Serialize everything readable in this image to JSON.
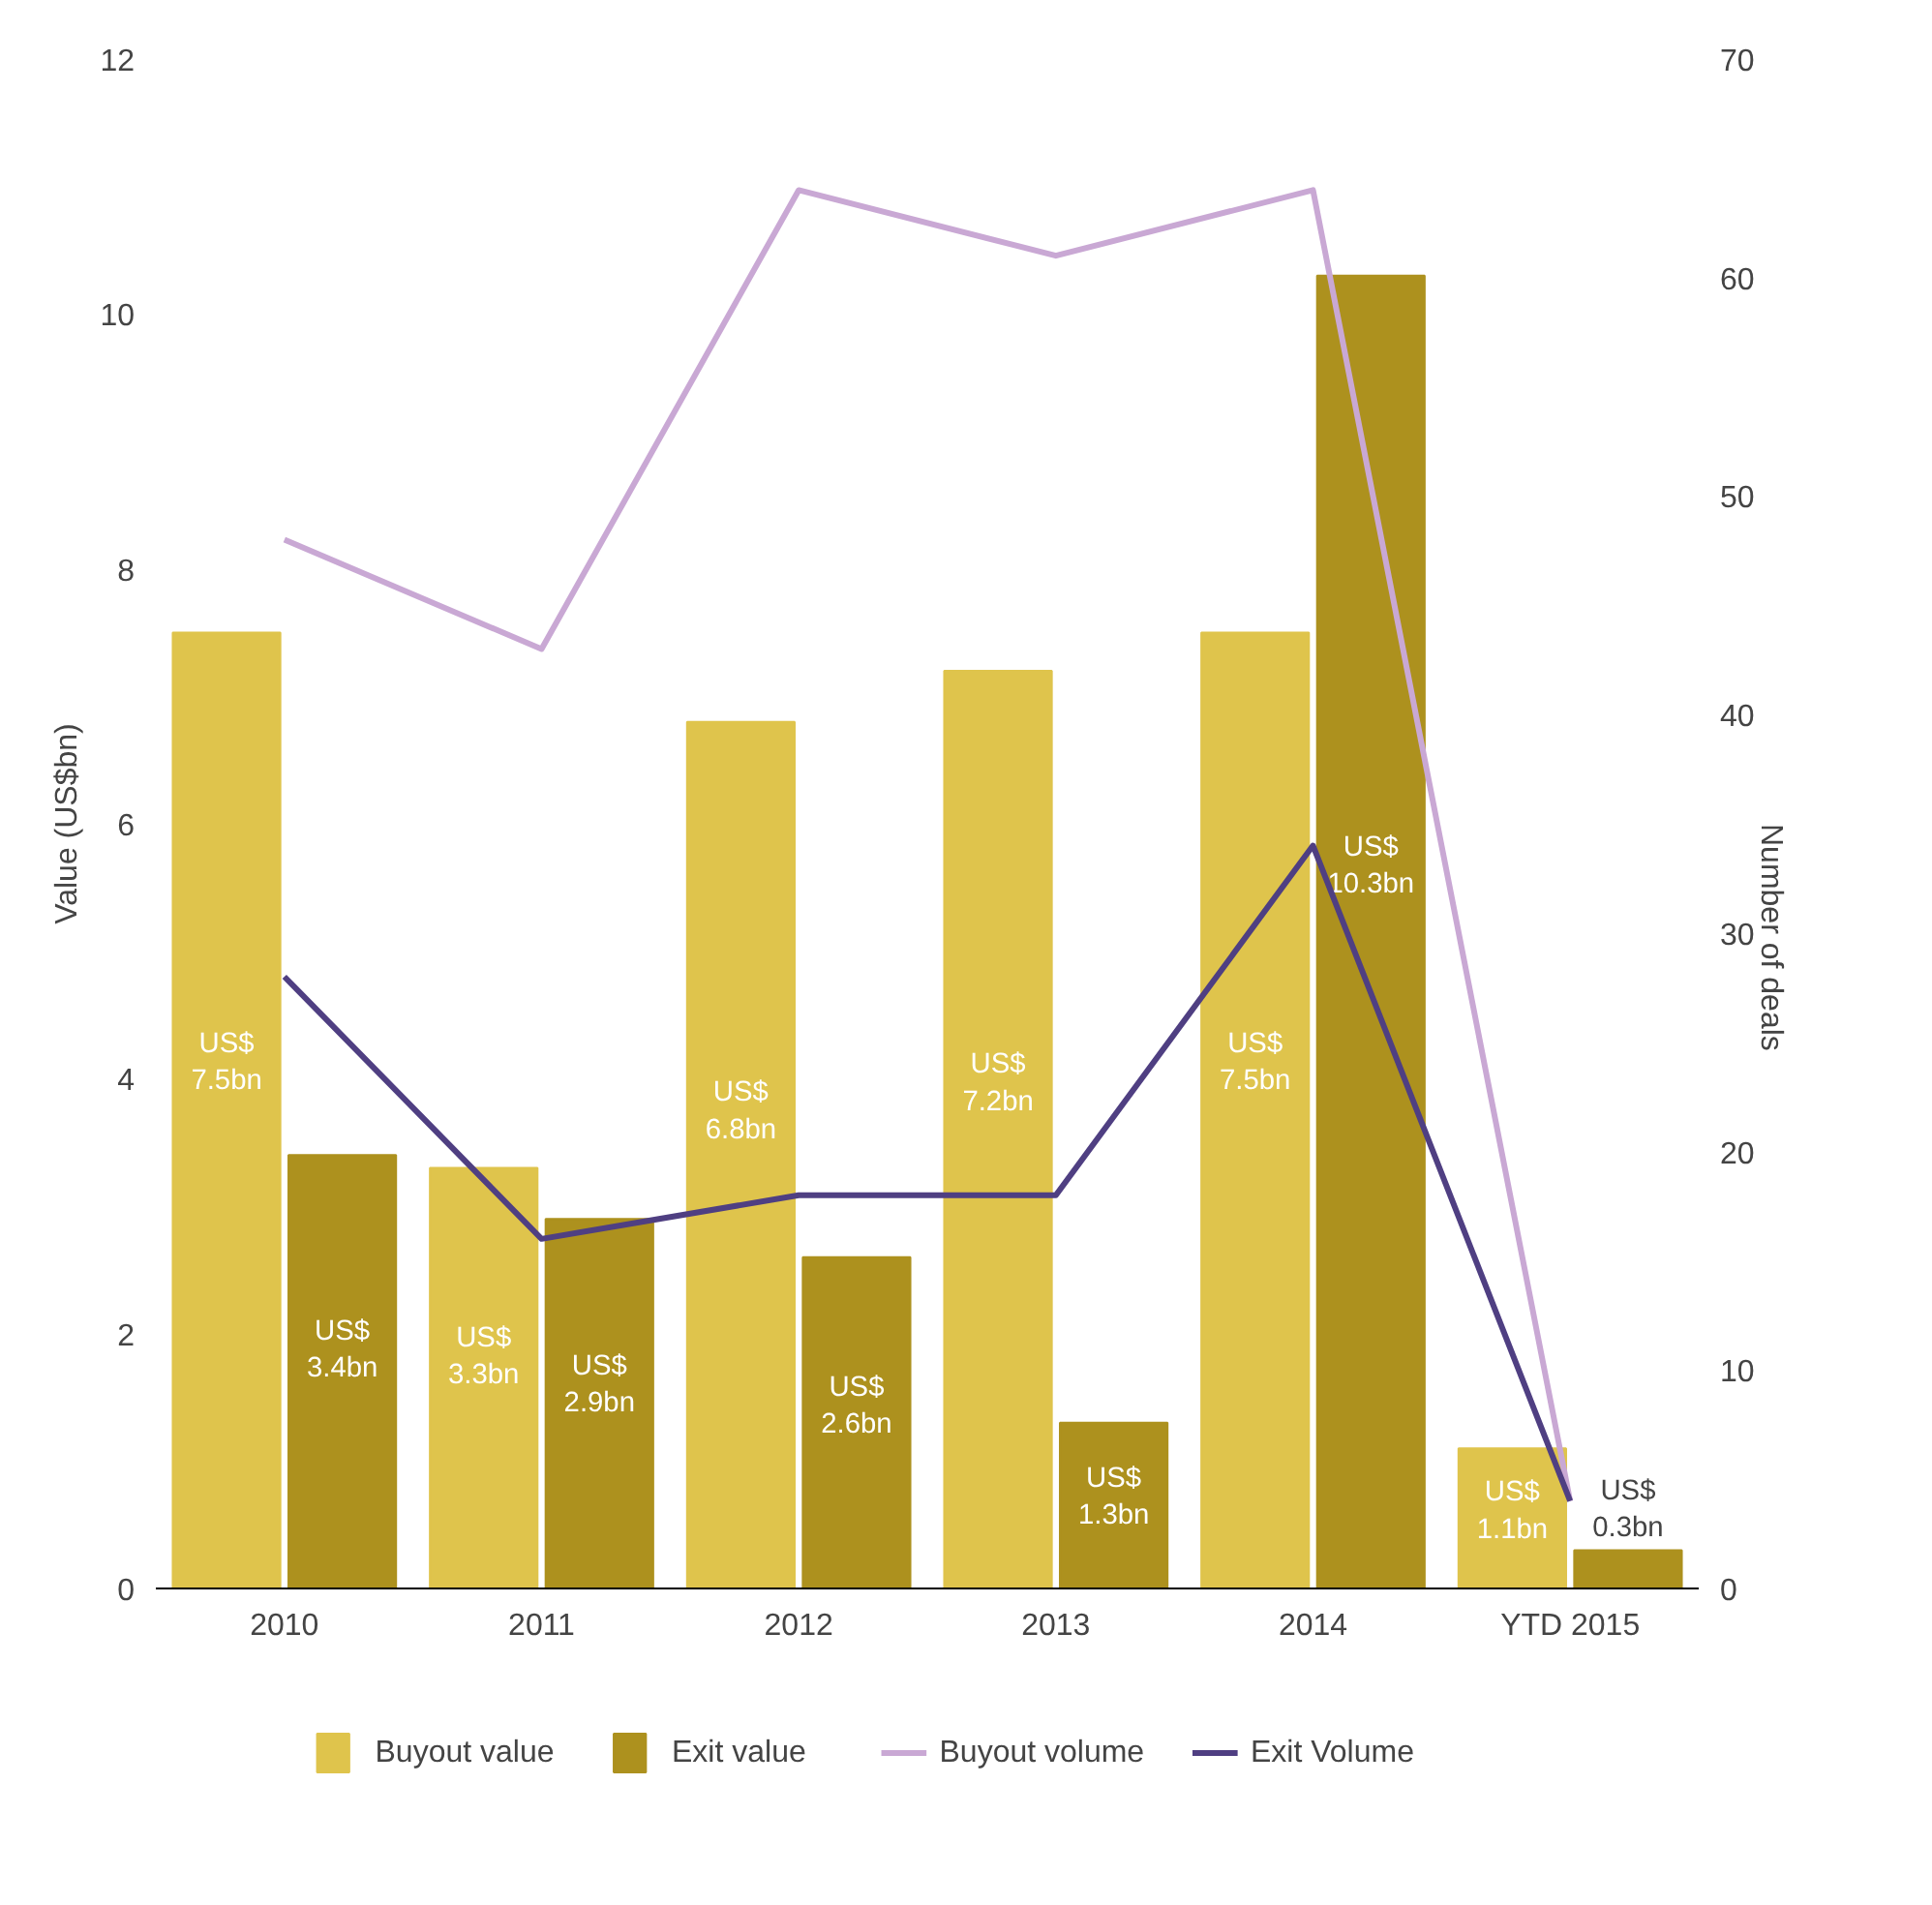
{
  "chart_data": {
    "type": "bar",
    "categories": [
      "2010",
      "2011",
      "2012",
      "2013",
      "2014",
      "YTD 2015"
    ],
    "ylabel": "Value (US$bn)",
    "y2label": "Number of deals",
    "ylim": [
      0,
      12
    ],
    "yticks": [
      0,
      2,
      4,
      6,
      8,
      10,
      12
    ],
    "y2lim": [
      0,
      70
    ],
    "y2ticks": [
      0,
      10,
      20,
      30,
      40,
      50,
      60,
      70
    ],
    "grid": false,
    "legend": "bottom",
    "series": [
      {
        "name": "Buyout value",
        "color": "#dfc44c",
        "values": [
          7.5,
          3.3,
          6.8,
          7.2,
          7.5,
          1.1
        ],
        "value_labels": [
          "US$\n7.5bn",
          "US$\n3.3bn",
          "US$\n6.8bn",
          "US$\n7.2bn",
          "US$\n7.5bn",
          "US$\n1.1bn"
        ]
      },
      {
        "name": "Exit value",
        "color": "#ad911e",
        "values": [
          3.4,
          2.9,
          2.6,
          1.3,
          10.3,
          0.3
        ],
        "value_labels": [
          "US$\n3.4bn",
          "US$\n2.9bn",
          "US$\n2.6bn",
          "US$\n1.3bn",
          "US$\n10.3bn",
          "US$\n0.3bn"
        ]
      },
      {
        "name": "Buyout volume",
        "type": "line",
        "axis": "y2",
        "color": "#c9a8d4",
        "values": [
          48,
          43,
          64,
          61,
          64,
          4
        ]
      },
      {
        "name": "Exit Volume",
        "type": "line",
        "axis": "y2",
        "color": "#4f3f82",
        "values": [
          28,
          16,
          18,
          18,
          34,
          4
        ]
      }
    ]
  }
}
